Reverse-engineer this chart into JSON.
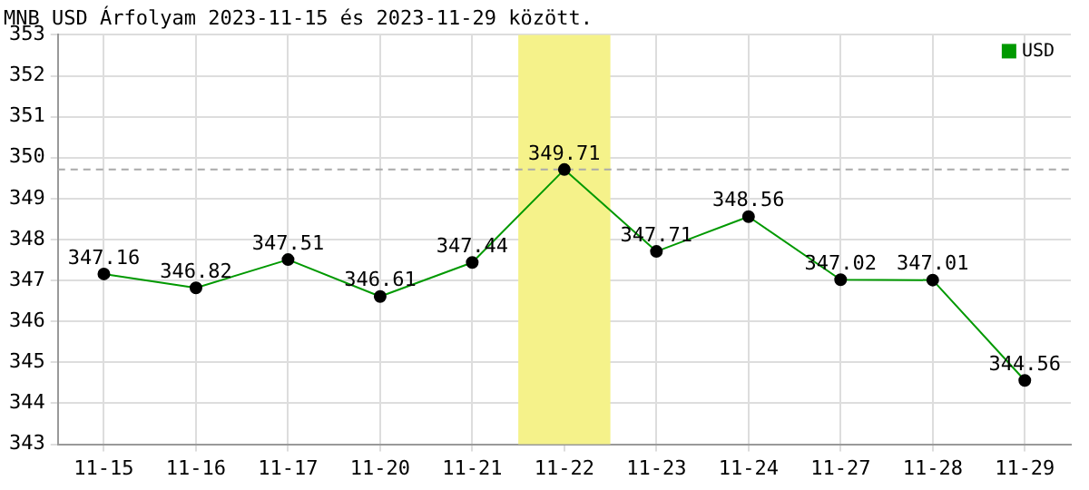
{
  "chart_data": {
    "type": "line",
    "title": "MNB USD Árfolyam 2023-11-15 és 2023-11-29 között.",
    "categories": [
      "11-15",
      "11-16",
      "11-17",
      "11-20",
      "11-21",
      "11-22",
      "11-23",
      "11-24",
      "11-27",
      "11-28",
      "11-29"
    ],
    "series": [
      {
        "name": "USD",
        "color": "#009900",
        "values": [
          347.16,
          346.82,
          347.51,
          346.61,
          347.44,
          349.71,
          347.71,
          348.56,
          347.02,
          347.01,
          344.56
        ]
      }
    ],
    "ylim": [
      343,
      353
    ],
    "yticks": [
      343,
      344,
      345,
      346,
      347,
      348,
      349,
      350,
      351,
      352,
      353
    ],
    "grid": true,
    "legend": "top right",
    "marker": "circle",
    "data_labels": true,
    "ref_lines": [
      {
        "axis": "y",
        "value": 349.71,
        "color": "#aaaaaa",
        "line_style": "dashed"
      }
    ],
    "bands": [
      {
        "axis": "x",
        "from": "11-22",
        "to": "11-22",
        "color": "#f5f28a"
      }
    ]
  }
}
